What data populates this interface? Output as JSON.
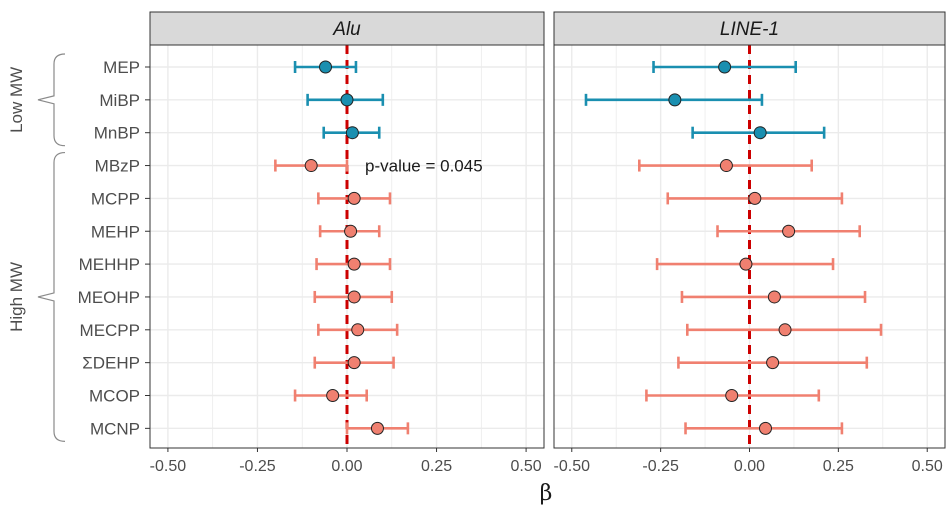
{
  "chart_data": {
    "type": "forest",
    "xlabel": "β",
    "xlim": [
      -0.55,
      0.55
    ],
    "x_ticks": [
      -0.5,
      -0.25,
      0.0,
      0.25,
      0.5
    ],
    "x_tick_labels": [
      "-0.50",
      "-0.25",
      "0.00",
      "0.25",
      "0.50"
    ],
    "reference_line": 0,
    "categories": [
      "MEP",
      "MiBP",
      "MnBP",
      "MBzP",
      "MCPP",
      "MEHP",
      "MEHHP",
      "MEOHP",
      "MECPP",
      "ΣDEHP",
      "MCOP",
      "MCNP"
    ],
    "groups": [
      {
        "label": "Low MW",
        "members": [
          "MEP",
          "MiBP",
          "MnBP"
        ],
        "color": "#1a8fb0"
      },
      {
        "label": "High MW",
        "members": [
          "MBzP",
          "MCPP",
          "MEHP",
          "MEHHP",
          "MEOHP",
          "MECPP",
          "ΣDEHP",
          "MCOP",
          "MCNP"
        ],
        "color": "#f08070"
      }
    ],
    "panels": [
      {
        "title": "Alu",
        "estimates": [
          -0.06,
          0.0,
          0.015,
          -0.1,
          0.02,
          0.01,
          0.02,
          0.02,
          0.03,
          0.02,
          -0.04,
          0.085
        ],
        "lower": [
          -0.145,
          -0.11,
          -0.065,
          -0.2,
          -0.08,
          -0.075,
          -0.085,
          -0.09,
          -0.08,
          -0.09,
          -0.145,
          0.0
        ],
        "upper": [
          0.025,
          0.1,
          0.09,
          0.0,
          0.12,
          0.09,
          0.12,
          0.125,
          0.14,
          0.13,
          0.055,
          0.17
        ],
        "annotation": {
          "text": "p-value = 0.045",
          "category": "MBzP"
        }
      },
      {
        "title": "LINE-1",
        "estimates": [
          -0.07,
          -0.21,
          0.03,
          -0.065,
          0.015,
          0.11,
          -0.01,
          0.07,
          0.1,
          0.065,
          -0.05,
          0.045
        ],
        "lower": [
          -0.27,
          -0.46,
          -0.16,
          -0.31,
          -0.23,
          -0.09,
          -0.26,
          -0.19,
          -0.175,
          -0.2,
          -0.29,
          -0.18
        ],
        "upper": [
          0.13,
          0.035,
          0.21,
          0.175,
          0.26,
          0.31,
          0.235,
          0.325,
          0.37,
          0.33,
          0.195,
          0.26
        ]
      }
    ],
    "grid": true,
    "legend": "none",
    "colors": {
      "strip_fill": "#d9d9d9",
      "panel_border": "#333333",
      "grid": "#ebebeb",
      "reference_line": "#cc0000"
    }
  }
}
